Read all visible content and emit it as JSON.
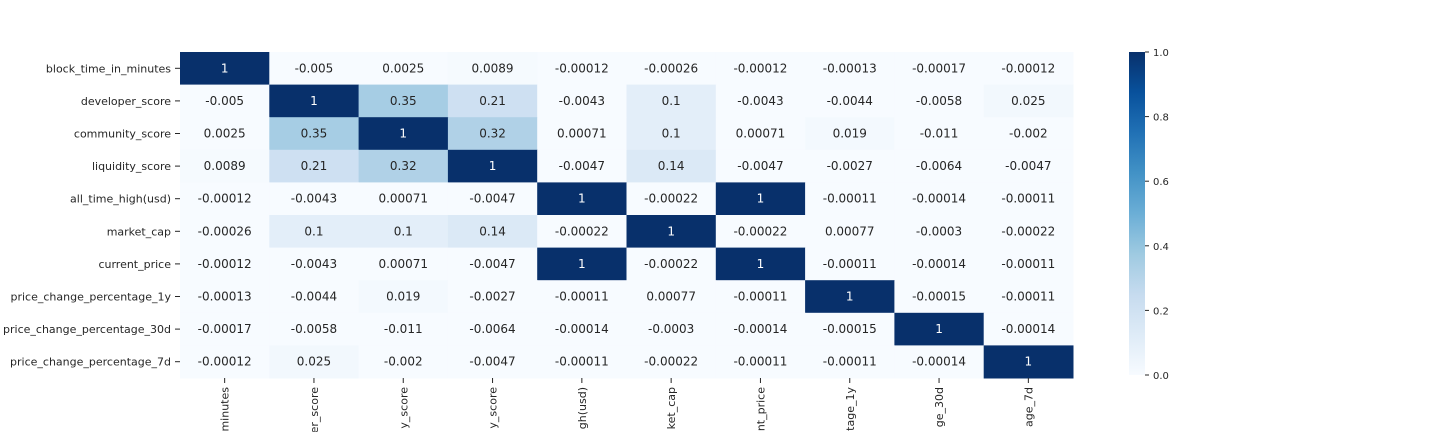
{
  "chart_data": {
    "type": "heatmap",
    "title": "",
    "xlabel": "",
    "ylabel": "",
    "row_labels": [
      "block_time_in_minutes",
      "developer_score",
      "community_score",
      "liquidity_score",
      "all_time_high(usd)",
      "market_cap",
      "current_price",
      "price_change_percentage_1y",
      "price_change_percentage_30d",
      "price_change_percentage_7d"
    ],
    "col_labels_visible": [
      "minutes",
      "er_score",
      "y_score",
      "y_score",
      "gh(usd)",
      "ket_cap",
      "nt_price",
      "tage_1y",
      "ge_30d",
      "age_7d"
    ],
    "cell_labels": [
      [
        "1",
        "-0.005",
        "0.0025",
        "0.0089",
        "-0.00012",
        "-0.00026",
        "-0.00012",
        "-0.00013",
        "-0.00017",
        "-0.00012"
      ],
      [
        "-0.005",
        "1",
        "0.35",
        "0.21",
        "-0.0043",
        "0.1",
        "-0.0043",
        "-0.0044",
        "-0.0058",
        "0.025"
      ],
      [
        "0.0025",
        "0.35",
        "1",
        "0.32",
        "0.00071",
        "0.1",
        "0.00071",
        "0.019",
        "-0.011",
        "-0.002"
      ],
      [
        "0.0089",
        "0.21",
        "0.32",
        "1",
        "-0.0047",
        "0.14",
        "-0.0047",
        "-0.0027",
        "-0.0064",
        "-0.0047"
      ],
      [
        "-0.00012",
        "-0.0043",
        "0.00071",
        "-0.0047",
        "1",
        "-0.00022",
        "1",
        "-0.00011",
        "-0.00014",
        "-0.00011"
      ],
      [
        "-0.00026",
        "0.1",
        "0.1",
        "0.14",
        "-0.00022",
        "1",
        "-0.00022",
        "0.00077",
        "-0.0003",
        "-0.00022"
      ],
      [
        "-0.00012",
        "-0.0043",
        "0.00071",
        "-0.0047",
        "1",
        "-0.00022",
        "1",
        "-0.00011",
        "-0.00014",
        "-0.00011"
      ],
      [
        "-0.00013",
        "-0.0044",
        "0.019",
        "-0.0027",
        "-0.00011",
        "0.00077",
        "-0.00011",
        "1",
        "-0.00015",
        "-0.00011"
      ],
      [
        "-0.00017",
        "-0.0058",
        "-0.011",
        "-0.0064",
        "-0.00014",
        "-0.0003",
        "-0.00014",
        "-0.00015",
        "1",
        "-0.00014"
      ],
      [
        "-0.00012",
        "0.025",
        "-0.002",
        "-0.0047",
        "-0.00011",
        "-0.00022",
        "-0.00011",
        "-0.00011",
        "-0.00014",
        "1"
      ]
    ],
    "colorbar": {
      "min": 0.0,
      "max": 1.0,
      "ticks": [
        "0.0",
        "0.2",
        "0.4",
        "0.6",
        "0.8",
        "1.0"
      ],
      "colormap": "Blues",
      "colors": [
        "#f7fbff",
        "#deebf7",
        "#c6dbef",
        "#9ecae1",
        "#6baed6",
        "#4292c6",
        "#2171b5",
        "#08519c",
        "#08306b"
      ]
    },
    "legend": "colorbar-right",
    "grid": false
  }
}
